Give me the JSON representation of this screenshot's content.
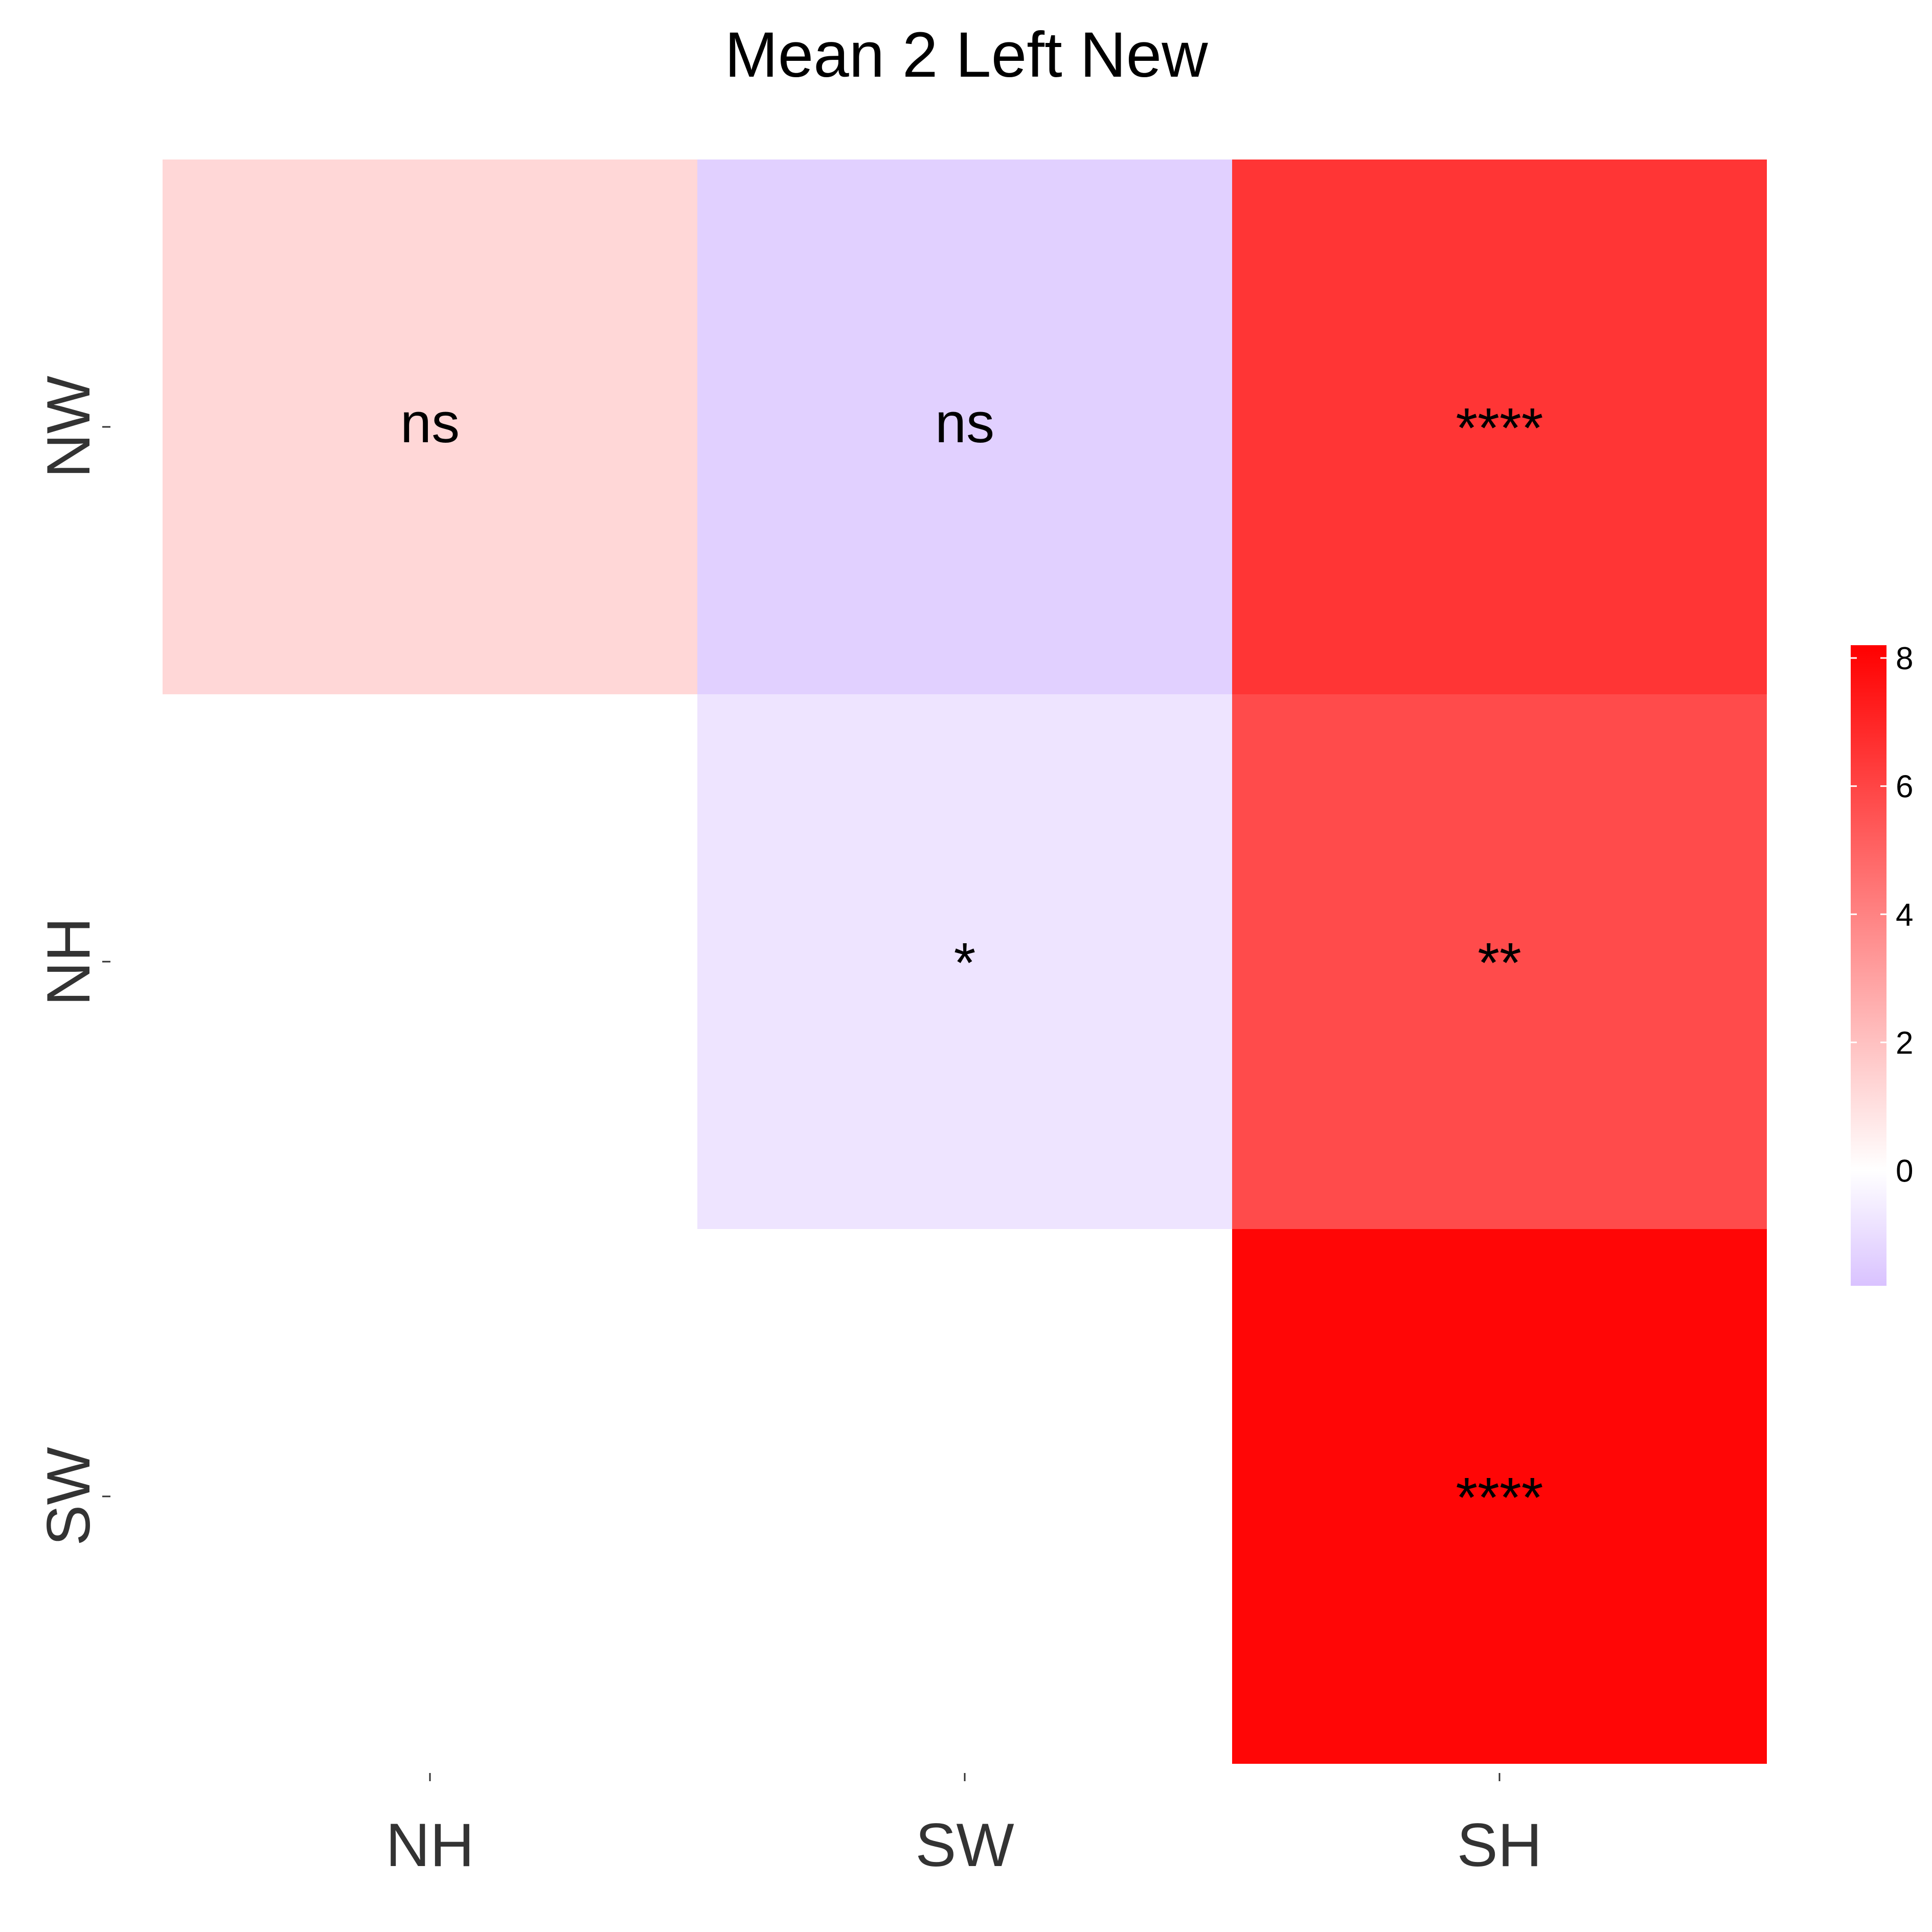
{
  "chart_data": {
    "type": "heatmap",
    "title": "Mean 2 Left New",
    "x_categories": [
      "NH",
      "SW",
      "SH"
    ],
    "y_categories": [
      "NW",
      "NH",
      "SW"
    ],
    "cells": [
      {
        "row": "NW",
        "col": "NH",
        "value": 1.3,
        "label": "ns"
      },
      {
        "row": "NW",
        "col": "SW",
        "value": -1.4,
        "label": "ns"
      },
      {
        "row": "NW",
        "col": "SH",
        "value": 6.5,
        "label": "****"
      },
      {
        "row": "NH",
        "col": "SW",
        "value": -0.8,
        "label": "*"
      },
      {
        "row": "NH",
        "col": "SH",
        "value": 5.8,
        "label": "**"
      },
      {
        "row": "SW",
        "col": "SH",
        "value": 8.0,
        "label": "****"
      }
    ],
    "colorbar": {
      "min": -1.8,
      "max": 8.2,
      "ticks": [
        0,
        2,
        4,
        6,
        8
      ],
      "low_color": "#d9c2ff",
      "mid_color": "#ffffff",
      "high_color": "#ff0000",
      "placement": "right"
    },
    "grid": false
  }
}
